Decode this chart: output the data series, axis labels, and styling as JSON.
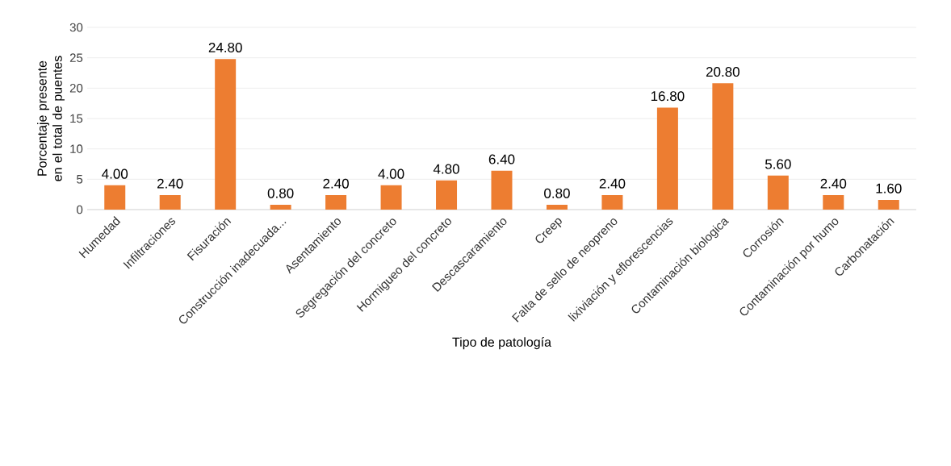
{
  "chart_data": {
    "type": "bar",
    "xlabel": "Tipo de patología",
    "ylabel": "Porcentaje presente en el total de puentes",
    "categories": [
      "Humedad",
      "Infiltraciones",
      "Fisuración",
      "Construcción inadecuada...",
      "Asentamiento",
      "Segregación del concreto",
      "Hormigueo del concreto",
      "Descascaramiento",
      "Creep",
      "Falta de sello de neopreno",
      "lixiviación y eflorescencias",
      "Contaminación biologica",
      "Corrosión",
      "Contaminación por humo",
      "Carbonatación"
    ],
    "values": [
      4.0,
      2.4,
      24.8,
      0.8,
      2.4,
      4.0,
      4.8,
      6.4,
      0.8,
      2.4,
      16.8,
      20.8,
      5.6,
      2.4,
      1.6
    ],
    "value_labels": [
      "4.00",
      "2.40",
      "24.80",
      "0.80",
      "2.40",
      "4.00",
      "4.80",
      "6.40",
      "0.80",
      "2.40",
      "16.80",
      "20.80",
      "5.60",
      "2.40",
      "1.60"
    ],
    "color": "#ed7d31",
    "ylim": [
      0,
      30
    ],
    "yticks": [
      0,
      5,
      10,
      15,
      20,
      25,
      30
    ],
    "grid": "y"
  }
}
